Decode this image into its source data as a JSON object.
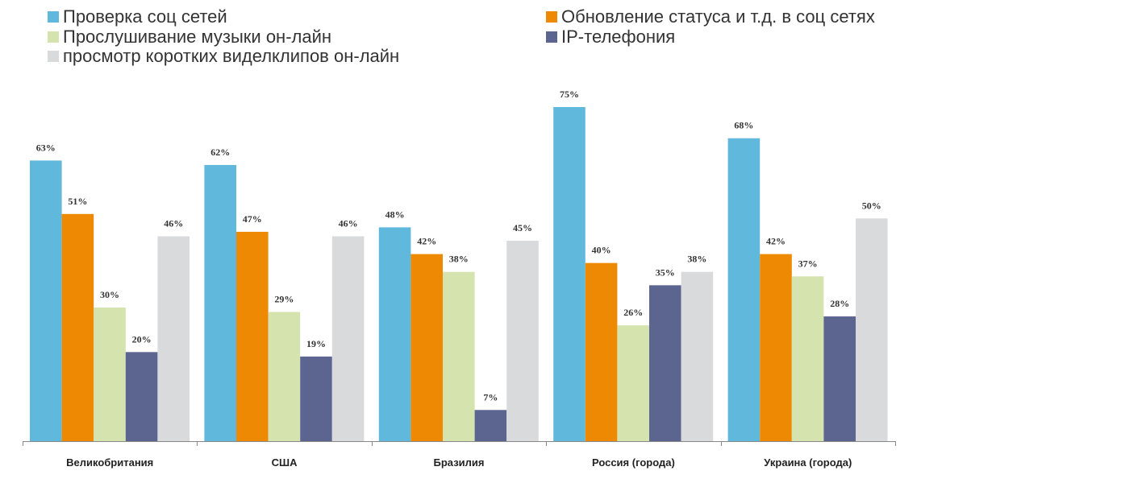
{
  "chart_data": {
    "type": "bar",
    "title": "",
    "xlabel": "",
    "ylabel": "",
    "ylim": [
      0,
      75
    ],
    "grid": false,
    "legend_position": "top",
    "categories": [
      "Великобритания",
      "США",
      "Бразилия",
      "Россия (города)",
      "Украина (города)"
    ],
    "series": [
      {
        "name": "Проверка соц сетей",
        "color": "#60b8dc",
        "values": [
          63,
          62,
          48,
          75,
          68
        ]
      },
      {
        "name": "Обновление статуса и т.д. в соц сетях",
        "color": "#ee8903",
        "values": [
          51,
          47,
          42,
          40,
          42
        ]
      },
      {
        "name": "Прослушивание музыки он-лайн",
        "color": "#d5e3ae",
        "values": [
          30,
          29,
          38,
          26,
          37
        ]
      },
      {
        "name": "IP-телефония",
        "color": "#5b6590",
        "values": [
          20,
          19,
          7,
          35,
          28
        ]
      },
      {
        "name": "просмотр коротких виделклипов он-лайн",
        "color": "#d9dadc",
        "values": [
          46,
          46,
          45,
          38,
          50
        ]
      }
    ],
    "value_suffix": "%"
  }
}
